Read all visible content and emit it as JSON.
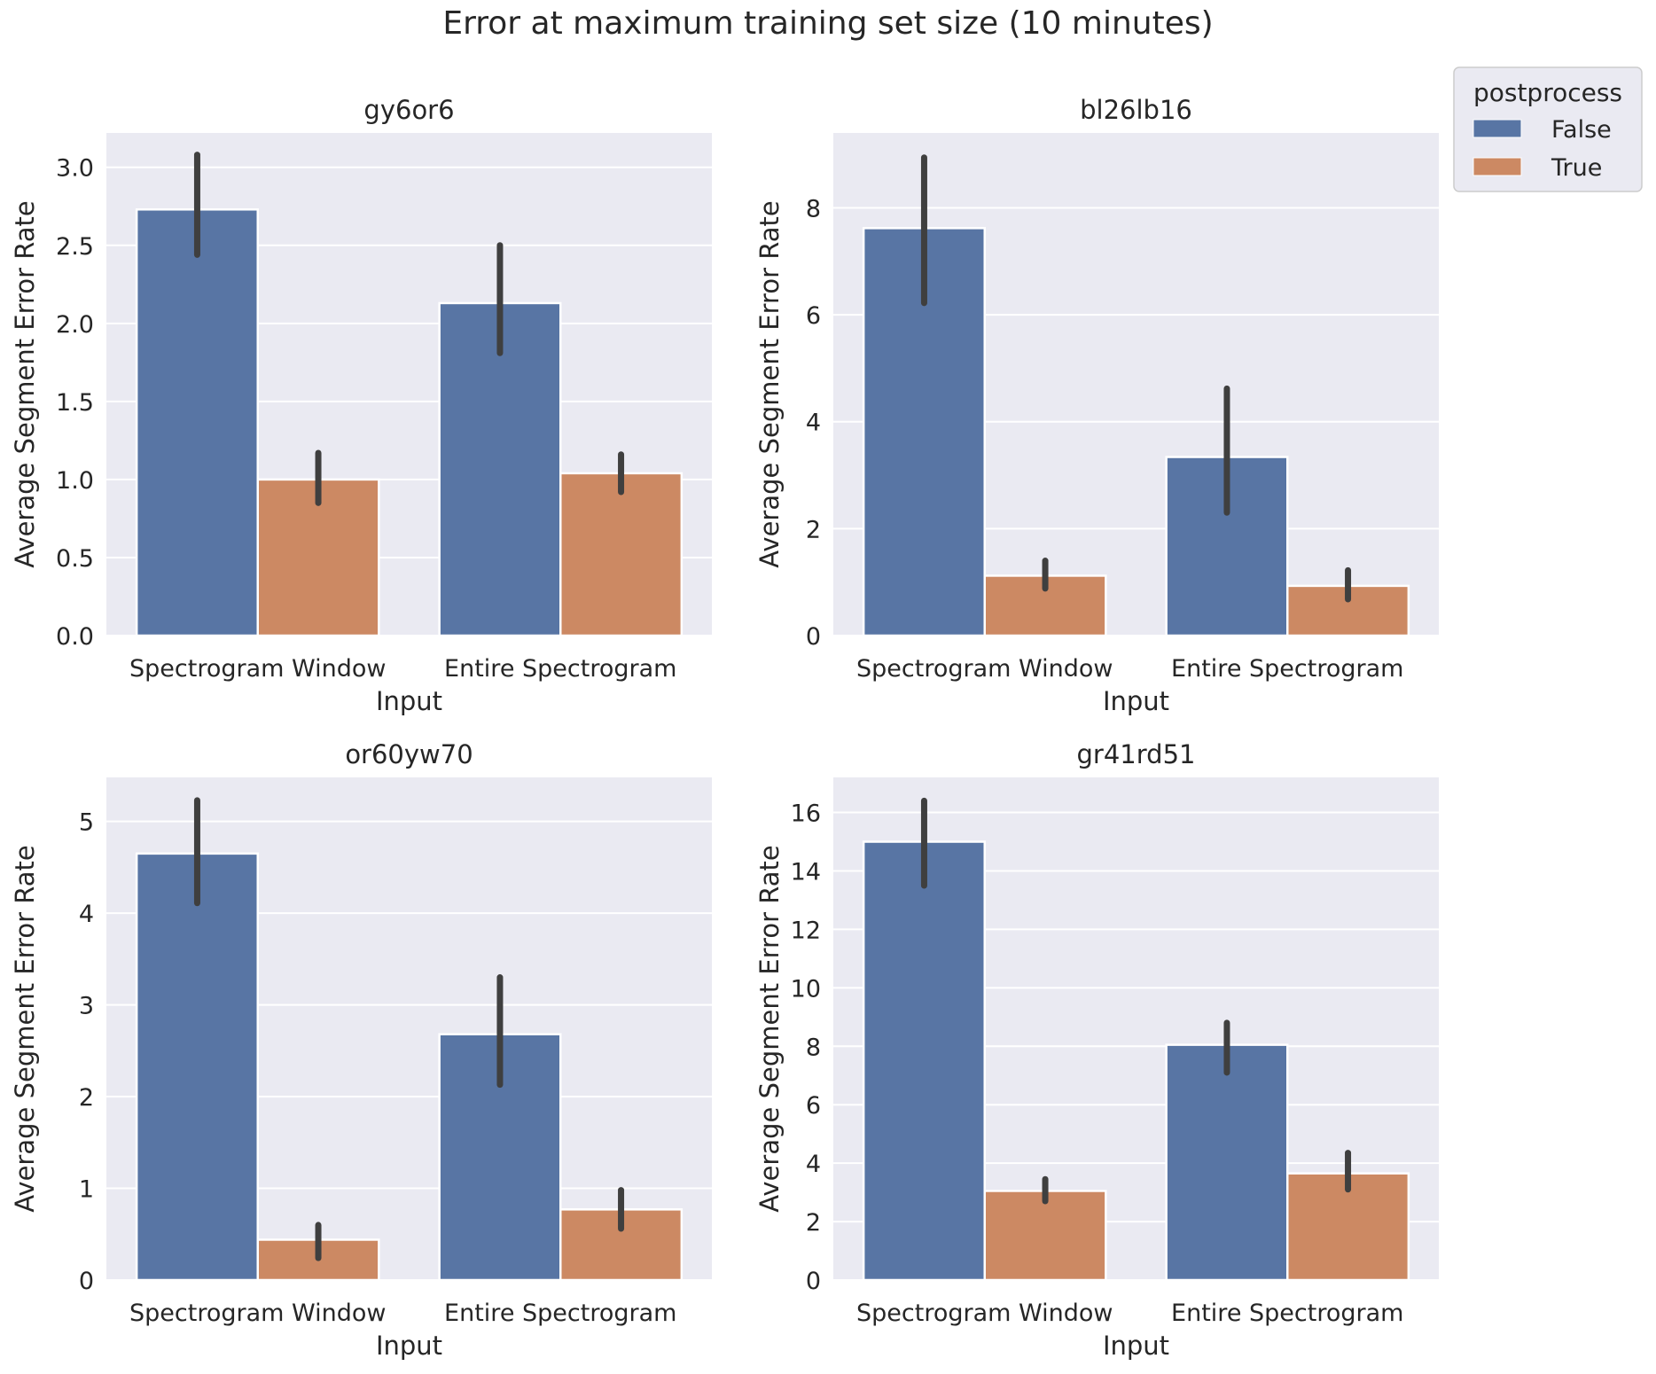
{
  "figure": {
    "title": "Error at maximum training set size (10 minutes)"
  },
  "legend": {
    "title": "postprocess",
    "placement": "right",
    "entries": [
      {
        "label": "False",
        "color": "#5875a4"
      },
      {
        "label": "True",
        "color": "#cc8963"
      }
    ]
  },
  "chart_data": [
    {
      "type": "bar",
      "title": "gy6or6",
      "xlabel": "Input",
      "ylabel": "Average Segment Error Rate",
      "categories": [
        "Spectrogram Window",
        "Entire Spectrogram"
      ],
      "ylim": [
        0,
        3.22
      ],
      "yticks": [
        0.0,
        0.5,
        1.0,
        1.5,
        2.0,
        2.5,
        3.0
      ],
      "ytick_labels": [
        "0.0",
        "0.5",
        "1.0",
        "1.5",
        "2.0",
        "2.5",
        "3.0"
      ],
      "grid": true,
      "series": [
        {
          "name": "False",
          "values": [
            2.73,
            2.13
          ],
          "ci_low": [
            2.44,
            1.81
          ],
          "ci_high": [
            3.08,
            2.5
          ]
        },
        {
          "name": "True",
          "values": [
            1.0,
            1.04
          ],
          "ci_low": [
            0.85,
            0.92
          ],
          "ci_high": [
            1.17,
            1.16
          ]
        }
      ]
    },
    {
      "type": "bar",
      "title": "bl26lb16",
      "xlabel": "Input",
      "ylabel": "Average Segment Error Rate",
      "categories": [
        "Spectrogram Window",
        "Entire Spectrogram"
      ],
      "ylim": [
        0,
        9.4
      ],
      "yticks": [
        0,
        2,
        4,
        6,
        8
      ],
      "ytick_labels": [
        "0",
        "2",
        "4",
        "6",
        "8"
      ],
      "grid": true,
      "series": [
        {
          "name": "False",
          "values": [
            7.62,
            3.34
          ],
          "ci_low": [
            6.22,
            2.3
          ],
          "ci_high": [
            8.94,
            4.62
          ]
        },
        {
          "name": "True",
          "values": [
            1.12,
            0.93
          ],
          "ci_low": [
            0.88,
            0.68
          ],
          "ci_high": [
            1.4,
            1.22
          ]
        }
      ]
    },
    {
      "type": "bar",
      "title": "or60yw70",
      "xlabel": "Input",
      "ylabel": "Average Segment Error Rate",
      "categories": [
        "Spectrogram Window",
        "Entire Spectrogram"
      ],
      "ylim": [
        0,
        5.48
      ],
      "yticks": [
        0,
        1,
        2,
        3,
        4,
        5
      ],
      "ytick_labels": [
        "0",
        "1",
        "2",
        "3",
        "4",
        "5"
      ],
      "grid": true,
      "series": [
        {
          "name": "False",
          "values": [
            4.65,
            2.68
          ],
          "ci_low": [
            4.11,
            2.13
          ],
          "ci_high": [
            5.23,
            3.3
          ]
        },
        {
          "name": "True",
          "values": [
            0.44,
            0.77
          ],
          "ci_low": [
            0.24,
            0.56
          ],
          "ci_high": [
            0.6,
            0.98
          ]
        }
      ]
    },
    {
      "type": "bar",
      "title": "gr41rd51",
      "xlabel": "Input",
      "ylabel": "Average Segment Error Rate",
      "categories": [
        "Spectrogram Window",
        "Entire Spectrogram"
      ],
      "ylim": [
        0,
        17.2
      ],
      "yticks": [
        0,
        2,
        4,
        6,
        8,
        10,
        12,
        14,
        16
      ],
      "ytick_labels": [
        "0",
        "2",
        "4",
        "6",
        "8",
        "10",
        "12",
        "14",
        "16"
      ],
      "grid": true,
      "series": [
        {
          "name": "False",
          "values": [
            15.0,
            8.05
          ],
          "ci_low": [
            13.5,
            7.1
          ],
          "ci_high": [
            16.4,
            8.8
          ]
        },
        {
          "name": "True",
          "values": [
            3.05,
            3.65
          ],
          "ci_low": [
            2.7,
            3.1
          ],
          "ci_high": [
            3.45,
            4.35
          ]
        }
      ]
    }
  ]
}
